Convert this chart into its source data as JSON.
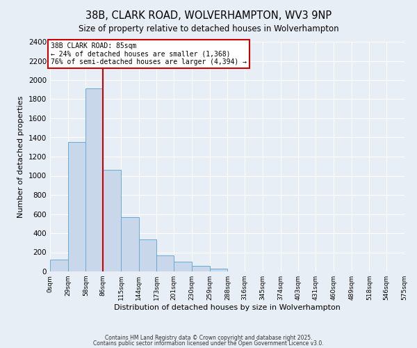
{
  "title": "38B, CLARK ROAD, WOLVERHAMPTON, WV3 9NP",
  "subtitle": "Size of property relative to detached houses in Wolverhampton",
  "xlabel": "Distribution of detached houses by size in Wolverhampton",
  "ylabel": "Number of detached properties",
  "bar_color": "#c8d8ea",
  "bar_edge_color": "#6aaad4",
  "background_color": "#e8eef5",
  "grid_color": "#ffffff",
  "annotation_box_color": "#ffffff",
  "annotation_box_edge": "#cc0000",
  "vline_color": "#cc0000",
  "vline_x": 86,
  "property_label": "38B CLARK ROAD: 85sqm",
  "pct_smaller": 24,
  "num_smaller": 1368,
  "pct_larger": 76,
  "num_larger": 4394,
  "bins": [
    0,
    29,
    58,
    86,
    115,
    144,
    173,
    201,
    230,
    259,
    288,
    316,
    345,
    374,
    403,
    431,
    460,
    489,
    518,
    546,
    575
  ],
  "bin_labels": [
    "0sqm",
    "29sqm",
    "58sqm",
    "86sqm",
    "115sqm",
    "144sqm",
    "173sqm",
    "201sqm",
    "230sqm",
    "259sqm",
    "288sqm",
    "316sqm",
    "345sqm",
    "374sqm",
    "403sqm",
    "431sqm",
    "460sqm",
    "489sqm",
    "518sqm",
    "546sqm",
    "575sqm"
  ],
  "counts": [
    125,
    1355,
    1910,
    1060,
    565,
    335,
    165,
    105,
    60,
    30,
    0,
    0,
    0,
    0,
    0,
    0,
    0,
    0,
    0,
    0
  ],
  "ylim": [
    0,
    2400
  ],
  "yticks": [
    0,
    200,
    400,
    600,
    800,
    1000,
    1200,
    1400,
    1600,
    1800,
    2000,
    2200,
    2400
  ],
  "footer1": "Contains HM Land Registry data © Crown copyright and database right 2025.",
  "footer2": "Contains public sector information licensed under the Open Government Licence v3.0."
}
